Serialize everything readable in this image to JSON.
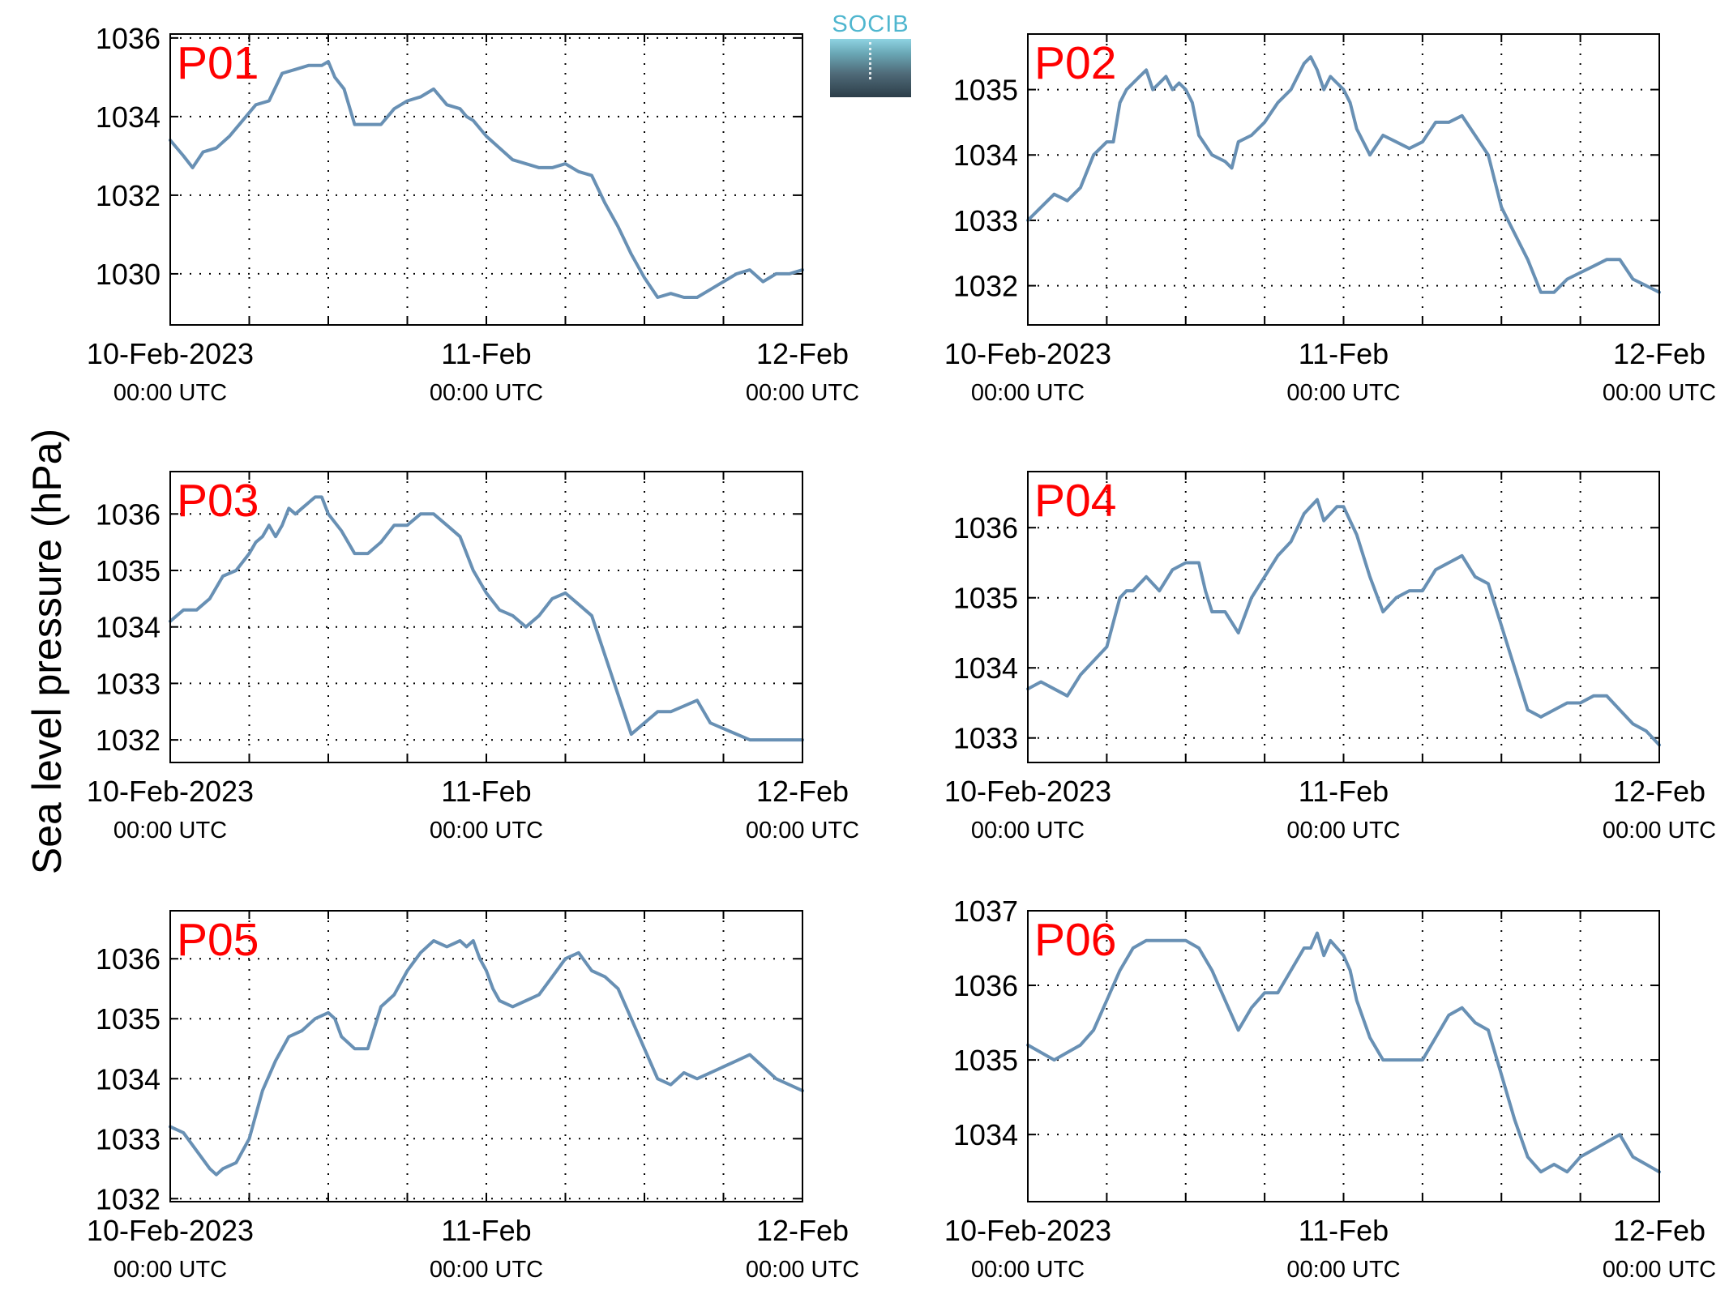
{
  "figure": {
    "ylabel": "Sea level pressure (hPa)",
    "logo_text": "SOCIB",
    "colors": {
      "line": "#6890b4",
      "panel_label": "#ff0000",
      "axis": "#000000",
      "grid": "#000000"
    }
  },
  "chart_data": [
    {
      "type": "line",
      "name": "P01",
      "ylim": [
        1028.7,
        1036.1
      ],
      "yticks": [
        1030,
        1032,
        1034,
        1036
      ],
      "xlim": [
        0,
        48
      ],
      "xticks": [
        {
          "x": 0,
          "label": "10-Feb-2023",
          "sub": "00:00 UTC"
        },
        {
          "x": 24,
          "label": "11-Feb",
          "sub": "00:00 UTC"
        },
        {
          "x": 48,
          "label": "12-Feb",
          "sub": "00:00 UTC"
        }
      ],
      "x": [
        0,
        1,
        1.7,
        2.5,
        3.5,
        4.5,
        5.5,
        6.5,
        7.5,
        8.5,
        9.5,
        10.5,
        11.5,
        12,
        12.5,
        13.2,
        14,
        15,
        16,
        17,
        18,
        19,
        20,
        21,
        22,
        22.5,
        23,
        24,
        25,
        26,
        27,
        28,
        29,
        30,
        31,
        32,
        33,
        34,
        35,
        36,
        37,
        38,
        39,
        40,
        41,
        42,
        43,
        44,
        45,
        46,
        47,
        48
      ],
      "y": [
        1033.4,
        1033.0,
        1032.7,
        1033.1,
        1033.2,
        1033.5,
        1033.9,
        1034.3,
        1034.4,
        1035.1,
        1035.2,
        1035.3,
        1035.3,
        1035.4,
        1035.0,
        1034.7,
        1033.8,
        1033.8,
        1033.8,
        1034.2,
        1034.4,
        1034.5,
        1034.7,
        1034.3,
        1034.2,
        1034.0,
        1033.9,
        1033.5,
        1033.2,
        1032.9,
        1032.8,
        1032.7,
        1032.7,
        1032.8,
        1032.6,
        1032.5,
        1031.8,
        1031.2,
        1030.5,
        1029.9,
        1029.4,
        1029.5,
        1029.4,
        1029.4,
        1029.6,
        1029.8,
        1030.0,
        1030.1,
        1029.8,
        1030.0,
        1030.0,
        1030.1
      ]
    },
    {
      "type": "line",
      "name": "P02",
      "ylim": [
        1031.4,
        1035.85
      ],
      "yticks": [
        1032,
        1033,
        1034,
        1035
      ],
      "xlim": [
        0,
        48
      ],
      "xticks": [
        {
          "x": 0,
          "label": "10-Feb-2023",
          "sub": "00:00 UTC"
        },
        {
          "x": 24,
          "label": "11-Feb",
          "sub": "00:00 UTC"
        },
        {
          "x": 48,
          "label": "12-Feb",
          "sub": "00:00 UTC"
        }
      ],
      "x": [
        0,
        1,
        2,
        3,
        4,
        5,
        6,
        6.5,
        7,
        7.5,
        8,
        8.5,
        9,
        9.5,
        10,
        10.5,
        11,
        11.5,
        12,
        12.5,
        13,
        14,
        15,
        15.5,
        16,
        17,
        18,
        19,
        20,
        21,
        21.5,
        22,
        22.5,
        23,
        23.5,
        24,
        24.5,
        25,
        26,
        27,
        28,
        29,
        30,
        31,
        32,
        33,
        34,
        35,
        36,
        37,
        38,
        39,
        40,
        41,
        42,
        43,
        44,
        45,
        46,
        47,
        48
      ],
      "y": [
        1033.0,
        1033.2,
        1033.4,
        1033.3,
        1033.5,
        1034.0,
        1034.2,
        1034.2,
        1034.8,
        1035.0,
        1035.1,
        1035.2,
        1035.3,
        1035.0,
        1035.1,
        1035.2,
        1035.0,
        1035.1,
        1035.0,
        1034.8,
        1034.3,
        1034.0,
        1033.9,
        1033.8,
        1034.2,
        1034.3,
        1034.5,
        1034.8,
        1035.0,
        1035.4,
        1035.5,
        1035.3,
        1035.0,
        1035.2,
        1035.1,
        1035.0,
        1034.8,
        1034.4,
        1034.0,
        1034.3,
        1034.2,
        1034.1,
        1034.2,
        1034.5,
        1034.5,
        1034.6,
        1034.3,
        1034.0,
        1033.2,
        1032.8,
        1032.4,
        1031.9,
        1031.9,
        1032.1,
        1032.2,
        1032.3,
        1032.4,
        1032.4,
        1032.1,
        1032.0,
        1031.9
      ]
    },
    {
      "type": "line",
      "name": "P03",
      "ylim": [
        1031.6,
        1036.75
      ],
      "yticks": [
        1032,
        1033,
        1034,
        1035,
        1036
      ],
      "xlim": [
        0,
        48
      ],
      "xticks": [
        {
          "x": 0,
          "label": "10-Feb-2023",
          "sub": "00:00 UTC"
        },
        {
          "x": 24,
          "label": "11-Feb",
          "sub": "00:00 UTC"
        },
        {
          "x": 48,
          "label": "12-Feb",
          "sub": "00:00 UTC"
        }
      ],
      "x": [
        0,
        1,
        2,
        3,
        4,
        5,
        6,
        6.5,
        7,
        7.5,
        8,
        8.5,
        9,
        9.5,
        10,
        11,
        11.5,
        12,
        13,
        14,
        15,
        16,
        17,
        18,
        19,
        20,
        21,
        22,
        23,
        24,
        25,
        26,
        27,
        28,
        29,
        30,
        31,
        32,
        33,
        34,
        35,
        36,
        37,
        38,
        39,
        40,
        41,
        42,
        43,
        44,
        45,
        46,
        47,
        48
      ],
      "y": [
        1034.1,
        1034.3,
        1034.3,
        1034.5,
        1034.9,
        1035.0,
        1035.3,
        1035.5,
        1035.6,
        1035.8,
        1035.6,
        1035.8,
        1036.1,
        1036.0,
        1036.1,
        1036.3,
        1036.3,
        1036.0,
        1035.7,
        1035.3,
        1035.3,
        1035.5,
        1035.8,
        1035.8,
        1036.0,
        1036.0,
        1035.8,
        1035.6,
        1035.0,
        1034.6,
        1034.3,
        1034.2,
        1034.0,
        1034.2,
        1034.5,
        1034.6,
        1034.4,
        1034.2,
        1033.5,
        1032.8,
        1032.1,
        1032.3,
        1032.5,
        1032.5,
        1032.6,
        1032.7,
        1032.3,
        1032.2,
        1032.1,
        1032.0,
        1032.0,
        1032.0,
        1032.0,
        1032.0
      ]
    },
    {
      "type": "line",
      "name": "P04",
      "ylim": [
        1032.65,
        1036.8
      ],
      "yticks": [
        1033,
        1034,
        1035,
        1036
      ],
      "xlim": [
        0,
        48
      ],
      "xticks": [
        {
          "x": 0,
          "label": "10-Feb-2023",
          "sub": "00:00 UTC"
        },
        {
          "x": 24,
          "label": "11-Feb",
          "sub": "00:00 UTC"
        },
        {
          "x": 48,
          "label": "12-Feb",
          "sub": "00:00 UTC"
        }
      ],
      "x": [
        0,
        1,
        2,
        3,
        4,
        5,
        6,
        7,
        7.5,
        8,
        9,
        10,
        11,
        12,
        13,
        13.5,
        14,
        15,
        16,
        17,
        18,
        19,
        20,
        21,
        21.5,
        22,
        22.5,
        23,
        23.5,
        24,
        24.5,
        25,
        26,
        27,
        28,
        29,
        30,
        31,
        32,
        33,
        34,
        35,
        36,
        37,
        38,
        39,
        40,
        41,
        42,
        43,
        44,
        45,
        46,
        47,
        48
      ],
      "y": [
        1033.7,
        1033.8,
        1033.7,
        1033.6,
        1033.9,
        1034.1,
        1034.3,
        1035.0,
        1035.1,
        1035.1,
        1035.3,
        1035.1,
        1035.4,
        1035.5,
        1035.5,
        1035.1,
        1034.8,
        1034.8,
        1034.5,
        1035.0,
        1035.3,
        1035.6,
        1035.8,
        1036.2,
        1036.3,
        1036.4,
        1036.1,
        1036.2,
        1036.3,
        1036.3,
        1036.1,
        1035.9,
        1035.3,
        1034.8,
        1035.0,
        1035.1,
        1035.1,
        1035.4,
        1035.5,
        1035.6,
        1035.3,
        1035.2,
        1034.6,
        1034.0,
        1033.4,
        1033.3,
        1033.4,
        1033.5,
        1033.5,
        1033.6,
        1033.6,
        1033.4,
        1033.2,
        1033.1,
        1032.9
      ]
    },
    {
      "type": "line",
      "name": "P05",
      "ylim": [
        1031.95,
        1036.8
      ],
      "yticks": [
        1032,
        1033,
        1034,
        1035,
        1036
      ],
      "xlim": [
        0,
        48
      ],
      "xticks": [
        {
          "x": 0,
          "label": "10-Feb-2023",
          "sub": "00:00 UTC"
        },
        {
          "x": 24,
          "label": "11-Feb",
          "sub": "00:00 UTC"
        },
        {
          "x": 48,
          "label": "12-Feb",
          "sub": "00:00 UTC"
        }
      ],
      "x": [
        0,
        1,
        2,
        3,
        3.5,
        4,
        5,
        6,
        7,
        8,
        9,
        10,
        11,
        12,
        12.5,
        13,
        14,
        15,
        16,
        17,
        18,
        19,
        20,
        21,
        22,
        22.5,
        23,
        23.5,
        24,
        24.5,
        25,
        26,
        27,
        28,
        29,
        30,
        31,
        32,
        33,
        34,
        35,
        36,
        37,
        38,
        39,
        40,
        41,
        42,
        43,
        44,
        45,
        46,
        47,
        48
      ],
      "y": [
        1033.2,
        1033.1,
        1032.8,
        1032.5,
        1032.4,
        1032.5,
        1032.6,
        1033.0,
        1033.8,
        1034.3,
        1034.7,
        1034.8,
        1035.0,
        1035.1,
        1035.0,
        1034.7,
        1034.5,
        1034.5,
        1035.2,
        1035.4,
        1035.8,
        1036.1,
        1036.3,
        1036.2,
        1036.3,
        1036.2,
        1036.3,
        1036.0,
        1035.8,
        1035.5,
        1035.3,
        1035.2,
        1035.3,
        1035.4,
        1035.7,
        1036.0,
        1036.1,
        1035.8,
        1035.7,
        1035.5,
        1035.0,
        1034.5,
        1034.0,
        1033.9,
        1034.1,
        1034.0,
        1034.1,
        1034.2,
        1034.3,
        1034.4,
        1034.2,
        1034.0,
        1033.9,
        1033.8
      ]
    },
    {
      "type": "line",
      "name": "P06",
      "ylim": [
        1033.1,
        1037.0
      ],
      "yticks": [
        1034,
        1035,
        1036,
        1037
      ],
      "xlim": [
        0,
        48
      ],
      "xticks": [
        {
          "x": 0,
          "label": "10-Feb-2023",
          "sub": "00:00 UTC"
        },
        {
          "x": 24,
          "label": "11-Feb",
          "sub": "00:00 UTC"
        },
        {
          "x": 48,
          "label": "12-Feb",
          "sub": "00:00 UTC"
        }
      ],
      "x": [
        0,
        1,
        2,
        3,
        4,
        5,
        6,
        7,
        8,
        9,
        10,
        11,
        12,
        13,
        14,
        15,
        16,
        17,
        18,
        19,
        20,
        21,
        21.5,
        22,
        22.5,
        23,
        23.5,
        24,
        24.5,
        25,
        26,
        27,
        28,
        29,
        30,
        31,
        32,
        33,
        34,
        35,
        36,
        37,
        38,
        39,
        40,
        41,
        42,
        43,
        44,
        45,
        46,
        47,
        48
      ],
      "y": [
        1035.2,
        1035.1,
        1035.0,
        1035.1,
        1035.2,
        1035.4,
        1035.8,
        1036.2,
        1036.5,
        1036.6,
        1036.6,
        1036.6,
        1036.6,
        1036.5,
        1036.2,
        1035.8,
        1035.4,
        1035.7,
        1035.9,
        1035.9,
        1036.2,
        1036.5,
        1036.5,
        1036.7,
        1036.4,
        1036.6,
        1036.5,
        1036.4,
        1036.2,
        1035.8,
        1035.3,
        1035.0,
        1035.0,
        1035.0,
        1035.0,
        1035.3,
        1035.6,
        1035.7,
        1035.5,
        1035.4,
        1034.8,
        1034.2,
        1033.7,
        1033.5,
        1033.6,
        1033.5,
        1033.7,
        1033.8,
        1033.9,
        1034.0,
        1033.7,
        1033.6,
        1033.5
      ]
    }
  ]
}
